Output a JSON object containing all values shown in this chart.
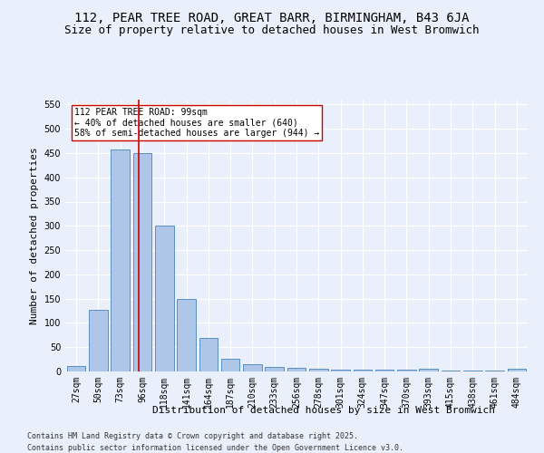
{
  "title1": "112, PEAR TREE ROAD, GREAT BARR, BIRMINGHAM, B43 6JA",
  "title2": "Size of property relative to detached houses in West Bromwich",
  "xlabel": "Distribution of detached houses by size in West Bromwich",
  "ylabel": "Number of detached properties",
  "categories": [
    "27sqm",
    "50sqm",
    "73sqm",
    "96sqm",
    "118sqm",
    "141sqm",
    "164sqm",
    "187sqm",
    "210sqm",
    "233sqm",
    "256sqm",
    "278sqm",
    "301sqm",
    "324sqm",
    "347sqm",
    "370sqm",
    "393sqm",
    "415sqm",
    "438sqm",
    "461sqm",
    "484sqm"
  ],
  "values": [
    12,
    127,
    457,
    450,
    300,
    150,
    70,
    27,
    15,
    10,
    7,
    5,
    4,
    3,
    3,
    3,
    5,
    2,
    2,
    2,
    6
  ],
  "bar_color": "#aec6e8",
  "bar_edge_color": "#5a8fc2",
  "vline_x": 2.85,
  "vline_color": "#cc0000",
  "annotation_text": "112 PEAR TREE ROAD: 99sqm\n← 40% of detached houses are smaller (640)\n58% of semi-detached houses are larger (944) →",
  "annotation_box_color": "#ffffff",
  "annotation_box_edge_color": "#cc0000",
  "annotation_fontsize": 7,
  "footer1": "Contains HM Land Registry data © Crown copyright and database right 2025.",
  "footer2": "Contains public sector information licensed under the Open Government Licence v3.0.",
  "ylim": [
    0,
    560
  ],
  "yticks": [
    0,
    50,
    100,
    150,
    200,
    250,
    300,
    350,
    400,
    450,
    500,
    550
  ],
  "background_color": "#eaf0fb",
  "grid_color": "#ffffff",
  "title_fontsize": 10,
  "subtitle_fontsize": 9,
  "axis_label_fontsize": 8,
  "tick_fontsize": 7,
  "footer_fontsize": 6
}
